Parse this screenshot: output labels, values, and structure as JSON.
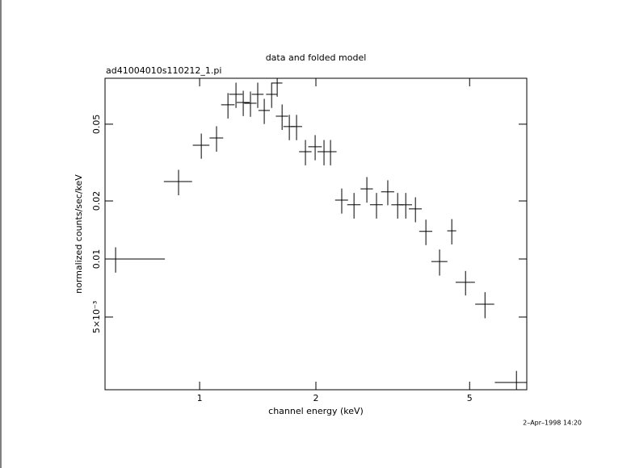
{
  "chart_data": {
    "type": "scatter",
    "title": "data and folded model",
    "subtitle": "ad41004010s110212_1.pi",
    "x_label": "channel energy (keV)",
    "y_label": "normalized counts/sec/keV",
    "annotation": "2–Apr–1998 14:20",
    "xscale": "log",
    "yscale": "log",
    "xlim": [
      0.569,
      7.03
    ],
    "ylim": [
      0.0021,
      0.0865
    ],
    "xticks": [
      1,
      2,
      5
    ],
    "yticks": [
      {
        "value": 0.005,
        "label": "5×10⁻³"
      },
      0.01,
      0.02,
      0.05
    ],
    "color": "#000000",
    "x": [
      0.606,
      0.882,
      1.01,
      1.106,
      1.184,
      1.242,
      1.297,
      1.354,
      1.414,
      1.47,
      1.536,
      1.588,
      1.635,
      1.707,
      1.782,
      1.879,
      1.991,
      2.099,
      2.182,
      2.333,
      2.51,
      2.71,
      2.87,
      3.07,
      3.256,
      3.417,
      3.62,
      3.853,
      4.18,
      4.496,
      4.88,
      5.48,
      6.61
    ],
    "xerr": [
      0.207,
      0.074,
      0.05,
      0.045,
      0.047,
      0.05,
      0.05,
      0.05,
      0.05,
      0.05,
      0.05,
      0.05,
      0.06,
      0.06,
      0.06,
      0.07,
      0.08,
      0.08,
      0.08,
      0.09,
      0.1,
      0.1,
      0.11,
      0.12,
      0.12,
      0.13,
      0.14,
      0.15,
      0.2,
      0.12,
      0.28,
      0.31,
      0.8
    ],
    "values": [
      0.01,
      0.0252,
      0.0389,
      0.0424,
      0.063,
      0.0714,
      0.0648,
      0.0642,
      0.0714,
      0.0589,
      0.0714,
      0.0817,
      0.055,
      0.0486,
      0.0486,
      0.036,
      0.0382,
      0.036,
      0.036,
      0.0202,
      0.0191,
      0.0231,
      0.0191,
      0.0223,
      0.0191,
      0.0191,
      0.0182,
      0.0139,
      0.0097,
      0.014,
      0.00757,
      0.00583,
      0.00229
    ],
    "yerr": [
      0.0015,
      0.0038,
      0.0058,
      0.0064,
      0.0095,
      0.0107,
      0.0097,
      0.0096,
      0.0107,
      0.0088,
      0.0107,
      0.0123,
      0.0083,
      0.0073,
      0.0073,
      0.0054,
      0.0057,
      0.0054,
      0.0054,
      0.003,
      0.0029,
      0.0035,
      0.0029,
      0.0033,
      0.0029,
      0.0029,
      0.0027,
      0.0021,
      0.0015,
      0.0021,
      0.0011,
      0.0009,
      0.00034
    ]
  }
}
